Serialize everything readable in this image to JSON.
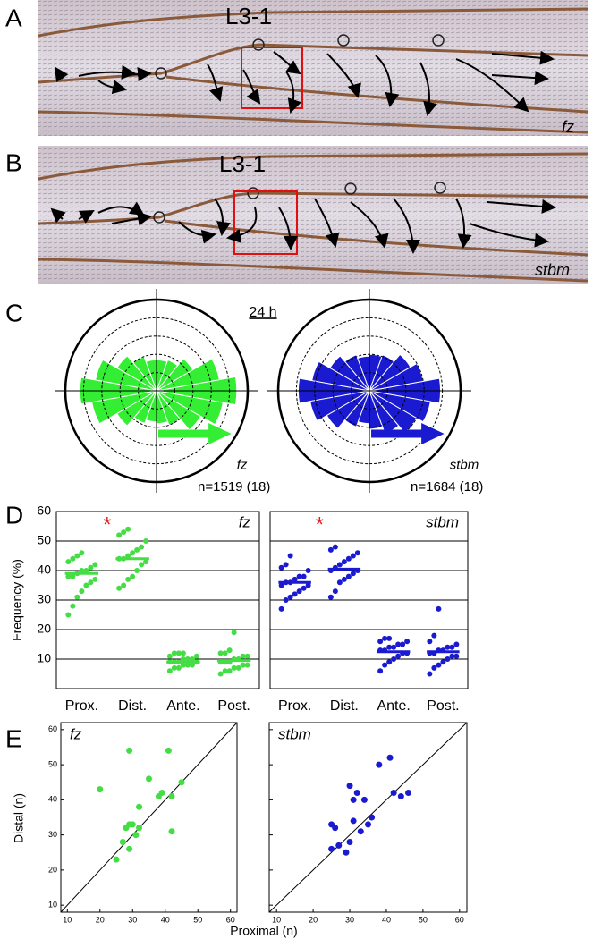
{
  "figure": {
    "panels": [
      "A",
      "B",
      "C",
      "D",
      "E"
    ],
    "wing_a": {
      "landmark": "L3-1",
      "genotype": "fz"
    },
    "wing_b": {
      "landmark": "L3-1",
      "genotype": "stbm"
    },
    "c_title": "24 h",
    "e_xlabel": "Proximal (n)",
    "e_ylabel": "Distal (n)"
  },
  "chart_data": [
    {
      "type": "rose",
      "label": "fz",
      "note": "n=1519 (18)",
      "color": "#33ee33",
      "angles": [
        0,
        20,
        40,
        60,
        80,
        100,
        120,
        140,
        160,
        180,
        200,
        220,
        240,
        260,
        280,
        300,
        320,
        340
      ],
      "values": [
        4.4,
        3.5,
        2.3,
        1.8,
        1.7,
        1.7,
        2.0,
        2.5,
        3.4,
        4.2,
        3.6,
        2.5,
        1.9,
        1.7,
        1.8,
        2.0,
        2.8,
        3.7
      ],
      "rlim": [
        0,
        5
      ],
      "rticks": [
        1,
        2,
        3,
        4,
        5
      ]
    },
    {
      "type": "rose",
      "label": "stbm",
      "note": "n=1684 (18)",
      "color": "#1a1ad0",
      "angles": [
        0,
        20,
        40,
        60,
        80,
        100,
        120,
        140,
        160,
        180,
        200,
        220,
        240,
        260,
        280,
        300,
        320,
        340
      ],
      "values": [
        3.9,
        3.0,
        2.6,
        2.1,
        2.0,
        1.9,
        2.1,
        2.5,
        3.2,
        3.9,
        3.3,
        2.7,
        2.1,
        1.8,
        2.1,
        2.5,
        3.0,
        3.4
      ],
      "rlim": [
        0,
        5
      ],
      "rticks": [
        1,
        2,
        3,
        4,
        5
      ]
    },
    {
      "type": "dot",
      "label": "fz",
      "ylabel": "Frequency (%)",
      "annotation": "*",
      "annotation_color": "#e02020",
      "color": "#44dd44",
      "categories": [
        "Prox.",
        "Dist.",
        "Ante.",
        "Post."
      ],
      "values": [
        [
          25,
          28,
          31,
          33,
          35,
          36,
          37,
          38,
          38,
          39,
          40,
          40,
          41,
          42,
          43,
          44,
          45,
          46
        ],
        [
          34,
          35,
          37,
          38,
          40,
          42,
          43,
          44,
          44,
          45,
          46,
          47,
          48,
          50,
          52,
          53,
          54
        ],
        [
          6,
          7,
          7,
          8,
          8,
          8,
          9,
          9,
          9,
          9,
          10,
          10,
          10,
          11,
          11,
          12,
          12,
          12
        ],
        [
          5,
          6,
          6,
          7,
          7,
          8,
          8,
          9,
          9,
          9,
          10,
          10,
          11,
          11,
          12,
          12,
          13,
          19
        ]
      ],
      "means": [
        39,
        44,
        9,
        9.5
      ],
      "ylim": [
        0,
        60
      ],
      "yticks": [
        10,
        20,
        30,
        40,
        50,
        60
      ],
      "grid": true
    },
    {
      "type": "dot",
      "label": "stbm",
      "annotation": "*",
      "annotation_color": "#e02020",
      "color": "#1a1ad0",
      "categories": [
        "Prox.",
        "Dist.",
        "Ante.",
        "Post."
      ],
      "values": [
        [
          27,
          30,
          31,
          32,
          33,
          34,
          35,
          35,
          36,
          36,
          37,
          38,
          38,
          40,
          41,
          42,
          45
        ],
        [
          31,
          33,
          36,
          37,
          38,
          39,
          40,
          40,
          41,
          42,
          43,
          44,
          45,
          46,
          47,
          48
        ],
        [
          6,
          8,
          9,
          10,
          11,
          12,
          12,
          13,
          13,
          14,
          14,
          15,
          15,
          16,
          16,
          17,
          17
        ],
        [
          5,
          7,
          8,
          9,
          10,
          11,
          11,
          12,
          12,
          13,
          13,
          14,
          14,
          15,
          16,
          18,
          27
        ]
      ],
      "means": [
        36,
        40.5,
        12.5,
        12.5
      ],
      "ylim": [
        0,
        60
      ],
      "yticks": [
        10,
        20,
        30,
        40,
        50,
        60
      ],
      "grid": true
    },
    {
      "type": "scatter",
      "label": "fz",
      "color": "#44dd44",
      "identity_line": true,
      "x": [
        20,
        29,
        41,
        35,
        25,
        27,
        28,
        29,
        30,
        29,
        31,
        32,
        32,
        38,
        39,
        42,
        42,
        45
      ],
      "values": [
        43,
        54,
        54,
        46,
        23,
        28,
        32,
        33,
        33,
        26,
        30,
        32,
        38,
        41,
        42,
        41,
        31,
        45
      ],
      "xlim": [
        8,
        62
      ],
      "ylim": [
        8,
        62
      ],
      "xticks": [
        10,
        20,
        30,
        40,
        50,
        60
      ],
      "yticks": [
        10,
        20,
        30,
        40,
        50,
        60
      ]
    },
    {
      "type": "scatter",
      "label": "stbm",
      "color": "#1a1ad0",
      "identity_line": true,
      "x": [
        25,
        26,
        25,
        27,
        29,
        30,
        31,
        31,
        32,
        33,
        34,
        35,
        36,
        38,
        41,
        42,
        44,
        46,
        30
      ],
      "values": [
        33,
        32,
        26,
        27,
        25,
        44,
        34,
        40,
        42,
        31,
        40,
        33,
        35,
        50,
        52,
        42,
        41,
        42,
        28
      ],
      "xlim": [
        8,
        62
      ],
      "ylim": [
        8,
        62
      ],
      "xticks": [
        10,
        20,
        30,
        40,
        50,
        60
      ],
      "yticks": [
        10,
        20,
        30,
        40,
        50,
        60
      ]
    }
  ]
}
